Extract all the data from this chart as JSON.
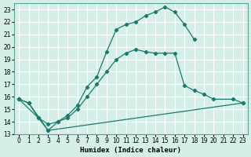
{
  "xlabel": "Humidex (Indice chaleur)",
  "bg_color": "#d6eee8",
  "grid_color": "#b8d8d0",
  "line_color": "#1a7a6e",
  "xlim": [
    -0.5,
    23.5
  ],
  "ylim": [
    13,
    23.5
  ],
  "xticks": [
    0,
    1,
    2,
    3,
    4,
    5,
    6,
    7,
    8,
    9,
    10,
    11,
    12,
    13,
    14,
    15,
    16,
    17,
    18,
    19,
    20,
    21,
    22,
    23
  ],
  "yticks": [
    13,
    14,
    15,
    16,
    17,
    18,
    19,
    20,
    21,
    22,
    23
  ],
  "curve1_x": [
    0,
    1,
    2,
    3,
    4,
    5,
    6,
    7,
    8,
    9,
    10,
    11,
    12,
    13,
    14,
    15,
    16,
    17,
    18
  ],
  "curve1_y": [
    15.8,
    15.5,
    14.3,
    13.3,
    14.0,
    14.5,
    15.3,
    16.8,
    17.6,
    19.6,
    21.4,
    21.8,
    22.0,
    22.5,
    22.8,
    23.2,
    22.8,
    21.8,
    20.6
  ],
  "curve2_x": [
    0,
    2,
    3,
    4,
    5,
    6,
    7,
    8,
    9,
    10,
    11,
    12,
    13,
    14,
    15,
    16,
    17,
    18,
    19,
    20,
    22,
    23
  ],
  "curve2_y": [
    15.8,
    14.3,
    13.8,
    14.0,
    14.3,
    15.0,
    16.0,
    17.0,
    18.0,
    19.0,
    19.5,
    19.8,
    19.6,
    19.5,
    19.5,
    19.5,
    16.9,
    16.5,
    16.2,
    15.8,
    15.8,
    15.5
  ],
  "curve3_x": [
    0,
    1,
    3,
    23
  ],
  "curve3_y": [
    15.8,
    15.5,
    13.3,
    15.5
  ]
}
